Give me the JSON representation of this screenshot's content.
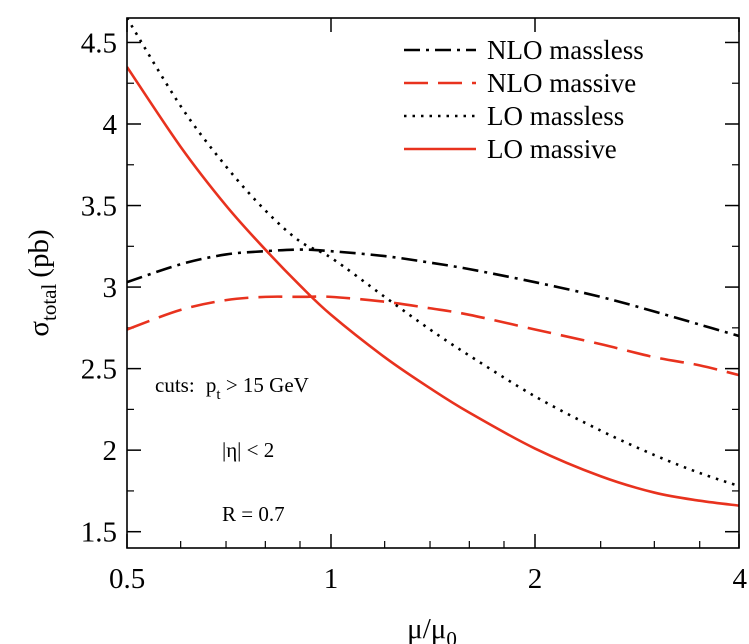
{
  "chart_data": {
    "type": "line",
    "xlabel_main": "μ/μ",
    "xlabel_sub": "0",
    "ylabel_main": "σ",
    "ylabel_sub": "total",
    "ylabel_unit": "(pb)",
    "x_scale": "log2",
    "xlim": [
      0.5,
      4
    ],
    "ylim": [
      1.4,
      4.65
    ],
    "x_ticks": [
      {
        "value": 0.5,
        "label": "0.5"
      },
      {
        "value": 1,
        "label": "1"
      },
      {
        "value": 2,
        "label": "2"
      },
      {
        "value": 4,
        "label": "4"
      }
    ],
    "y_ticks": [
      {
        "value": 1.5,
        "label": "1.5"
      },
      {
        "value": 2,
        "label": "2"
      },
      {
        "value": 2.5,
        "label": "2.5"
      },
      {
        "value": 3,
        "label": "3"
      },
      {
        "value": 3.5,
        "label": "3.5"
      },
      {
        "value": 4,
        "label": "4"
      },
      {
        "value": 4.5,
        "label": "4.5"
      }
    ],
    "legend_position": "top-right",
    "series": [
      {
        "name": "NLO massless",
        "color": "#000000",
        "dash": "dash-dot",
        "x": [
          0.5,
          0.6,
          0.7,
          0.8,
          0.9,
          1.0,
          1.2,
          1.4,
          1.6,
          2.0,
          2.5,
          3.0,
          3.5,
          4.0
        ],
        "y": [
          3.03,
          3.14,
          3.2,
          3.22,
          3.23,
          3.22,
          3.19,
          3.15,
          3.11,
          3.03,
          2.94,
          2.85,
          2.77,
          2.7
        ]
      },
      {
        "name": "NLO massive",
        "color": "#e8321e",
        "dash": "dashed",
        "x": [
          0.5,
          0.6,
          0.7,
          0.8,
          0.9,
          1.0,
          1.2,
          1.4,
          1.6,
          2.0,
          2.5,
          3.0,
          3.5,
          4.0
        ],
        "y": [
          2.74,
          2.86,
          2.92,
          2.94,
          2.94,
          2.94,
          2.91,
          2.87,
          2.83,
          2.74,
          2.65,
          2.57,
          2.52,
          2.46
        ]
      },
      {
        "name": "LO massless",
        "color": "#000000",
        "dash": "dotted",
        "x": [
          0.5,
          0.6,
          0.7,
          0.8,
          0.9,
          1.0,
          1.2,
          1.4,
          1.6,
          2.0,
          2.5,
          3.0,
          3.5,
          4.0
        ],
        "y": [
          4.65,
          4.11,
          3.74,
          3.47,
          3.28,
          3.18,
          2.94,
          2.74,
          2.58,
          2.33,
          2.12,
          1.97,
          1.86,
          1.78
        ]
      },
      {
        "name": "LO massive",
        "color": "#e8321e",
        "dash": "solid",
        "x": [
          0.5,
          0.6,
          0.7,
          0.8,
          0.9,
          1.0,
          1.2,
          1.4,
          1.6,
          2.0,
          2.5,
          3.0,
          3.5,
          4.0
        ],
        "y": [
          4.35,
          3.86,
          3.5,
          3.23,
          3.01,
          2.83,
          2.57,
          2.38,
          2.23,
          2.01,
          1.84,
          1.74,
          1.69,
          1.66
        ]
      }
    ],
    "annotations": {
      "cuts_prefix": "cuts:",
      "cut1_main": "p",
      "cut1_sub": "t",
      "cut1_rest": " > 15 GeV",
      "cut2": "|η| < 2",
      "cut3": "R = 0.7"
    }
  }
}
